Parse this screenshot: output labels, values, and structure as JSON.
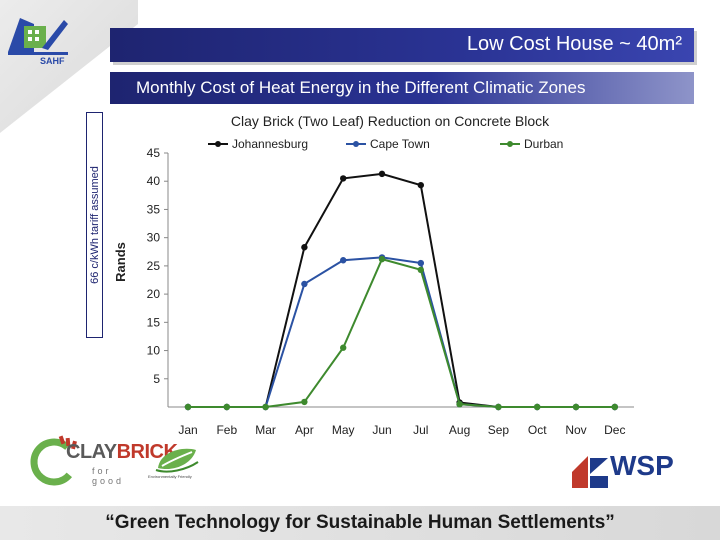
{
  "header": {
    "title": "Low Cost House ~ 40m²",
    "subtitle": "Monthly Cost of Heat Energy in the Different Climatic Zones",
    "logo_text": "SAHF"
  },
  "side_note": "66 c/kWh tariff assumed",
  "chart_data": {
    "type": "line",
    "title": "Clay Brick (Two Leaf) Reduction on Concrete Block",
    "ylabel": "Rands",
    "xlabel": "",
    "categories": [
      "Jan",
      "Feb",
      "Mar",
      "Apr",
      "May",
      "Jun",
      "Jul",
      "Aug",
      "Sep",
      "Oct",
      "Nov",
      "Dec"
    ],
    "ylim": [
      0,
      45
    ],
    "yticks": [
      "5",
      "10",
      "15",
      "20",
      "25",
      "30",
      "35",
      "40",
      "45"
    ],
    "legend_position": "top",
    "grid": false,
    "series": [
      {
        "name": "Johannesburg",
        "color": "#111111",
        "values": [
          0,
          0,
          0,
          28.3,
          40.5,
          41.3,
          39.3,
          0.8,
          0,
          0,
          0,
          0
        ]
      },
      {
        "name": "Cape Town",
        "color": "#2b52a3",
        "values": [
          0,
          0,
          0,
          21.8,
          26.0,
          26.5,
          25.5,
          0.5,
          0,
          0,
          0,
          0
        ]
      },
      {
        "name": "Durban",
        "color": "#3e8a2e",
        "values": [
          0,
          0,
          0,
          0.9,
          10.5,
          26.2,
          24.3,
          0.5,
          0,
          0,
          0,
          0
        ]
      }
    ]
  },
  "logos": {
    "claybrick_main": "CLAY",
    "claybrick_red": "BRICK",
    "claybrick_sub": "for good",
    "env_caption": "Environmentally Friendly",
    "wsp": "WSP"
  },
  "footer": {
    "text": "“Green Technology for Sustainable Human Settlements”"
  }
}
